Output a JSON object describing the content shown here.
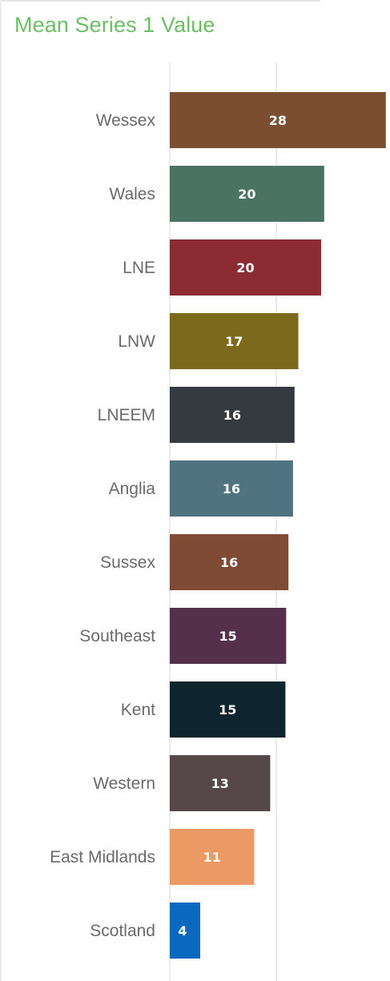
{
  "chart_data": {
    "type": "bar",
    "orientation": "horizontal",
    "title": "Mean Series 1 Value",
    "xlabel": "",
    "ylabel": "",
    "xlim": [
      0,
      28
    ],
    "grid": true,
    "categories": [
      "Wessex",
      "Wales",
      "LNE",
      "LNW",
      "LNEEM",
      "Anglia",
      "Sussex",
      "Southeast",
      "Kent",
      "Western",
      "East Midlands",
      "Scotland"
    ],
    "values": [
      28.4,
      20.3,
      19.9,
      16.9,
      16.4,
      16.2,
      15.6,
      15.3,
      15.2,
      13.2,
      11.1,
      4.0
    ],
    "data_labels": [
      "28",
      "20",
      "20",
      "17",
      "16",
      "16",
      "16",
      "15",
      "15",
      "13",
      "11",
      "4"
    ],
    "colors": [
      "#7b4e31",
      "#4a7462",
      "#8a2c32",
      "#7c6a1c",
      "#343a40",
      "#4f7381",
      "#7f4b34",
      "#54304b",
      "#0f252d",
      "#564848",
      "#ec9a63",
      "#0a69be"
    ]
  }
}
